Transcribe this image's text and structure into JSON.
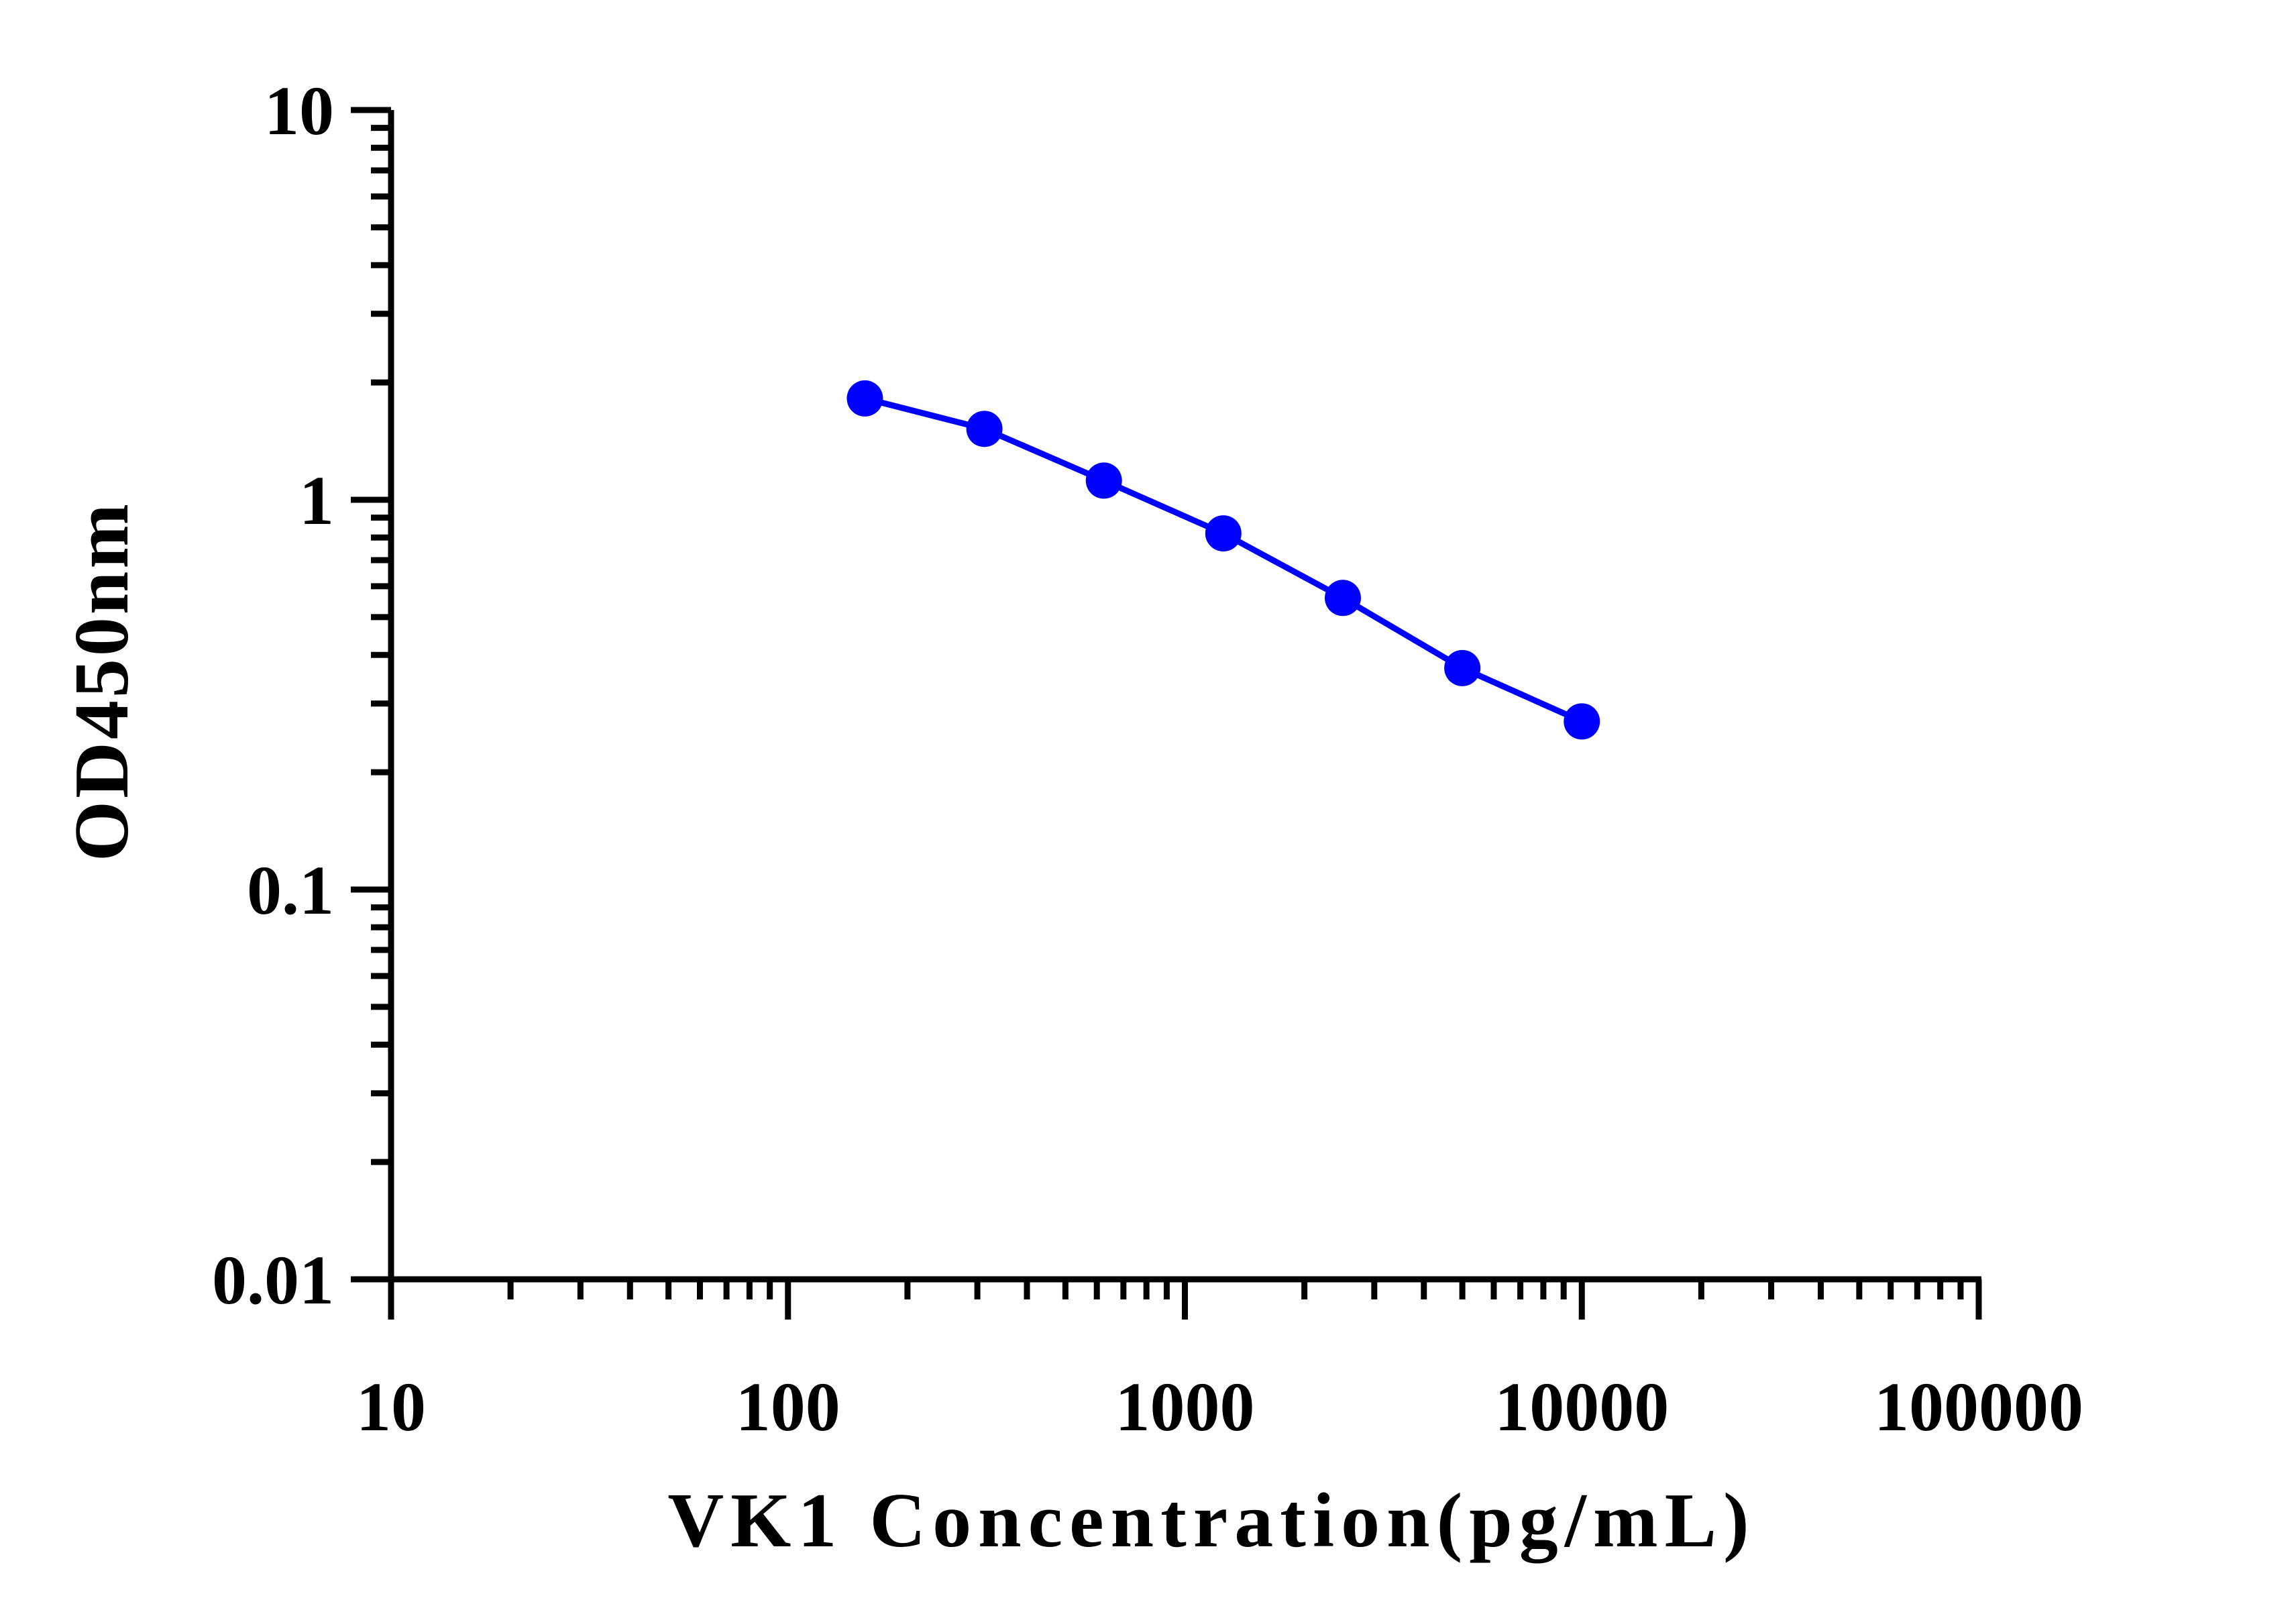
{
  "chart_data": {
    "type": "line",
    "xlabel": "VK1 Concentration(pg/mL)",
    "ylabel": "OD450nm",
    "x_scale": "log",
    "y_scale": "log",
    "xlim": [
      10,
      100000
    ],
    "ylim": [
      0.01,
      10
    ],
    "x_ticks": [
      "10",
      "100",
      "1000",
      "10000",
      "100000"
    ],
    "y_ticks": [
      "0.01",
      "0.1",
      "1",
      "10"
    ],
    "grid": false,
    "legend": "none",
    "series": [
      {
        "color": "#0000ff",
        "x": [
          156.25,
          312.5,
          625,
          1250,
          2500,
          5000,
          10000
        ],
        "y": [
          1.82,
          1.52,
          1.12,
          0.82,
          0.56,
          0.37,
          0.27
        ]
      }
    ]
  }
}
